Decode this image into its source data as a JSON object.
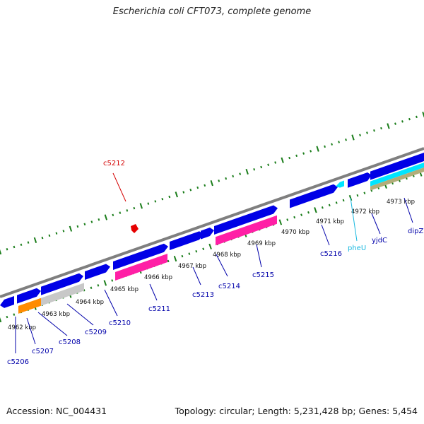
{
  "title": "Escherichia coli CFT073, complete genome",
  "footer": {
    "accession": "Accession: NC_004431",
    "summary": "Topology: circular; Length: 5,231,428 bp; Genes: 5,454"
  },
  "colors": {
    "backbone": "#7f7f7f",
    "cds": "#0000e6",
    "pink": "#ff1fa6",
    "gray": "#c8c8c8",
    "orange": "#ff8c00",
    "cyan": "#00e5ff",
    "olive": "#b2ad79",
    "tick": "#1a7d1a",
    "label_blue": "#0000aa",
    "label_red": "#d40000",
    "label_cyan": "#1ab9e0"
  },
  "kbp_labels": [
    "4962 kbp",
    "4963 kbp",
    "4964 kbp",
    "4965 kbp",
    "4966 kbp",
    "4967 kbp",
    "4968 kbp",
    "4969 kbp",
    "4970 kbp",
    "4971 kbp",
    "4972 kbp",
    "4973 kbp"
  ],
  "genes": [
    {
      "name": "c5206",
      "color": "label_blue"
    },
    {
      "name": "c5207",
      "color": "label_blue"
    },
    {
      "name": "c5208",
      "color": "label_blue"
    },
    {
      "name": "c5209",
      "color": "label_blue"
    },
    {
      "name": "c5210",
      "color": "label_blue"
    },
    {
      "name": "c5211",
      "color": "label_blue"
    },
    {
      "name": "c5213",
      "color": "label_blue"
    },
    {
      "name": "c5214",
      "color": "label_blue"
    },
    {
      "name": "c5215",
      "color": "label_blue"
    },
    {
      "name": "c5216",
      "color": "label_blue"
    },
    {
      "name": "pheU",
      "color": "label_cyan"
    },
    {
      "name": "yjdC",
      "color": "label_blue"
    },
    {
      "name": "dipZ",
      "color": "label_blue"
    },
    {
      "name": "c5212",
      "color": "label_red"
    }
  ]
}
